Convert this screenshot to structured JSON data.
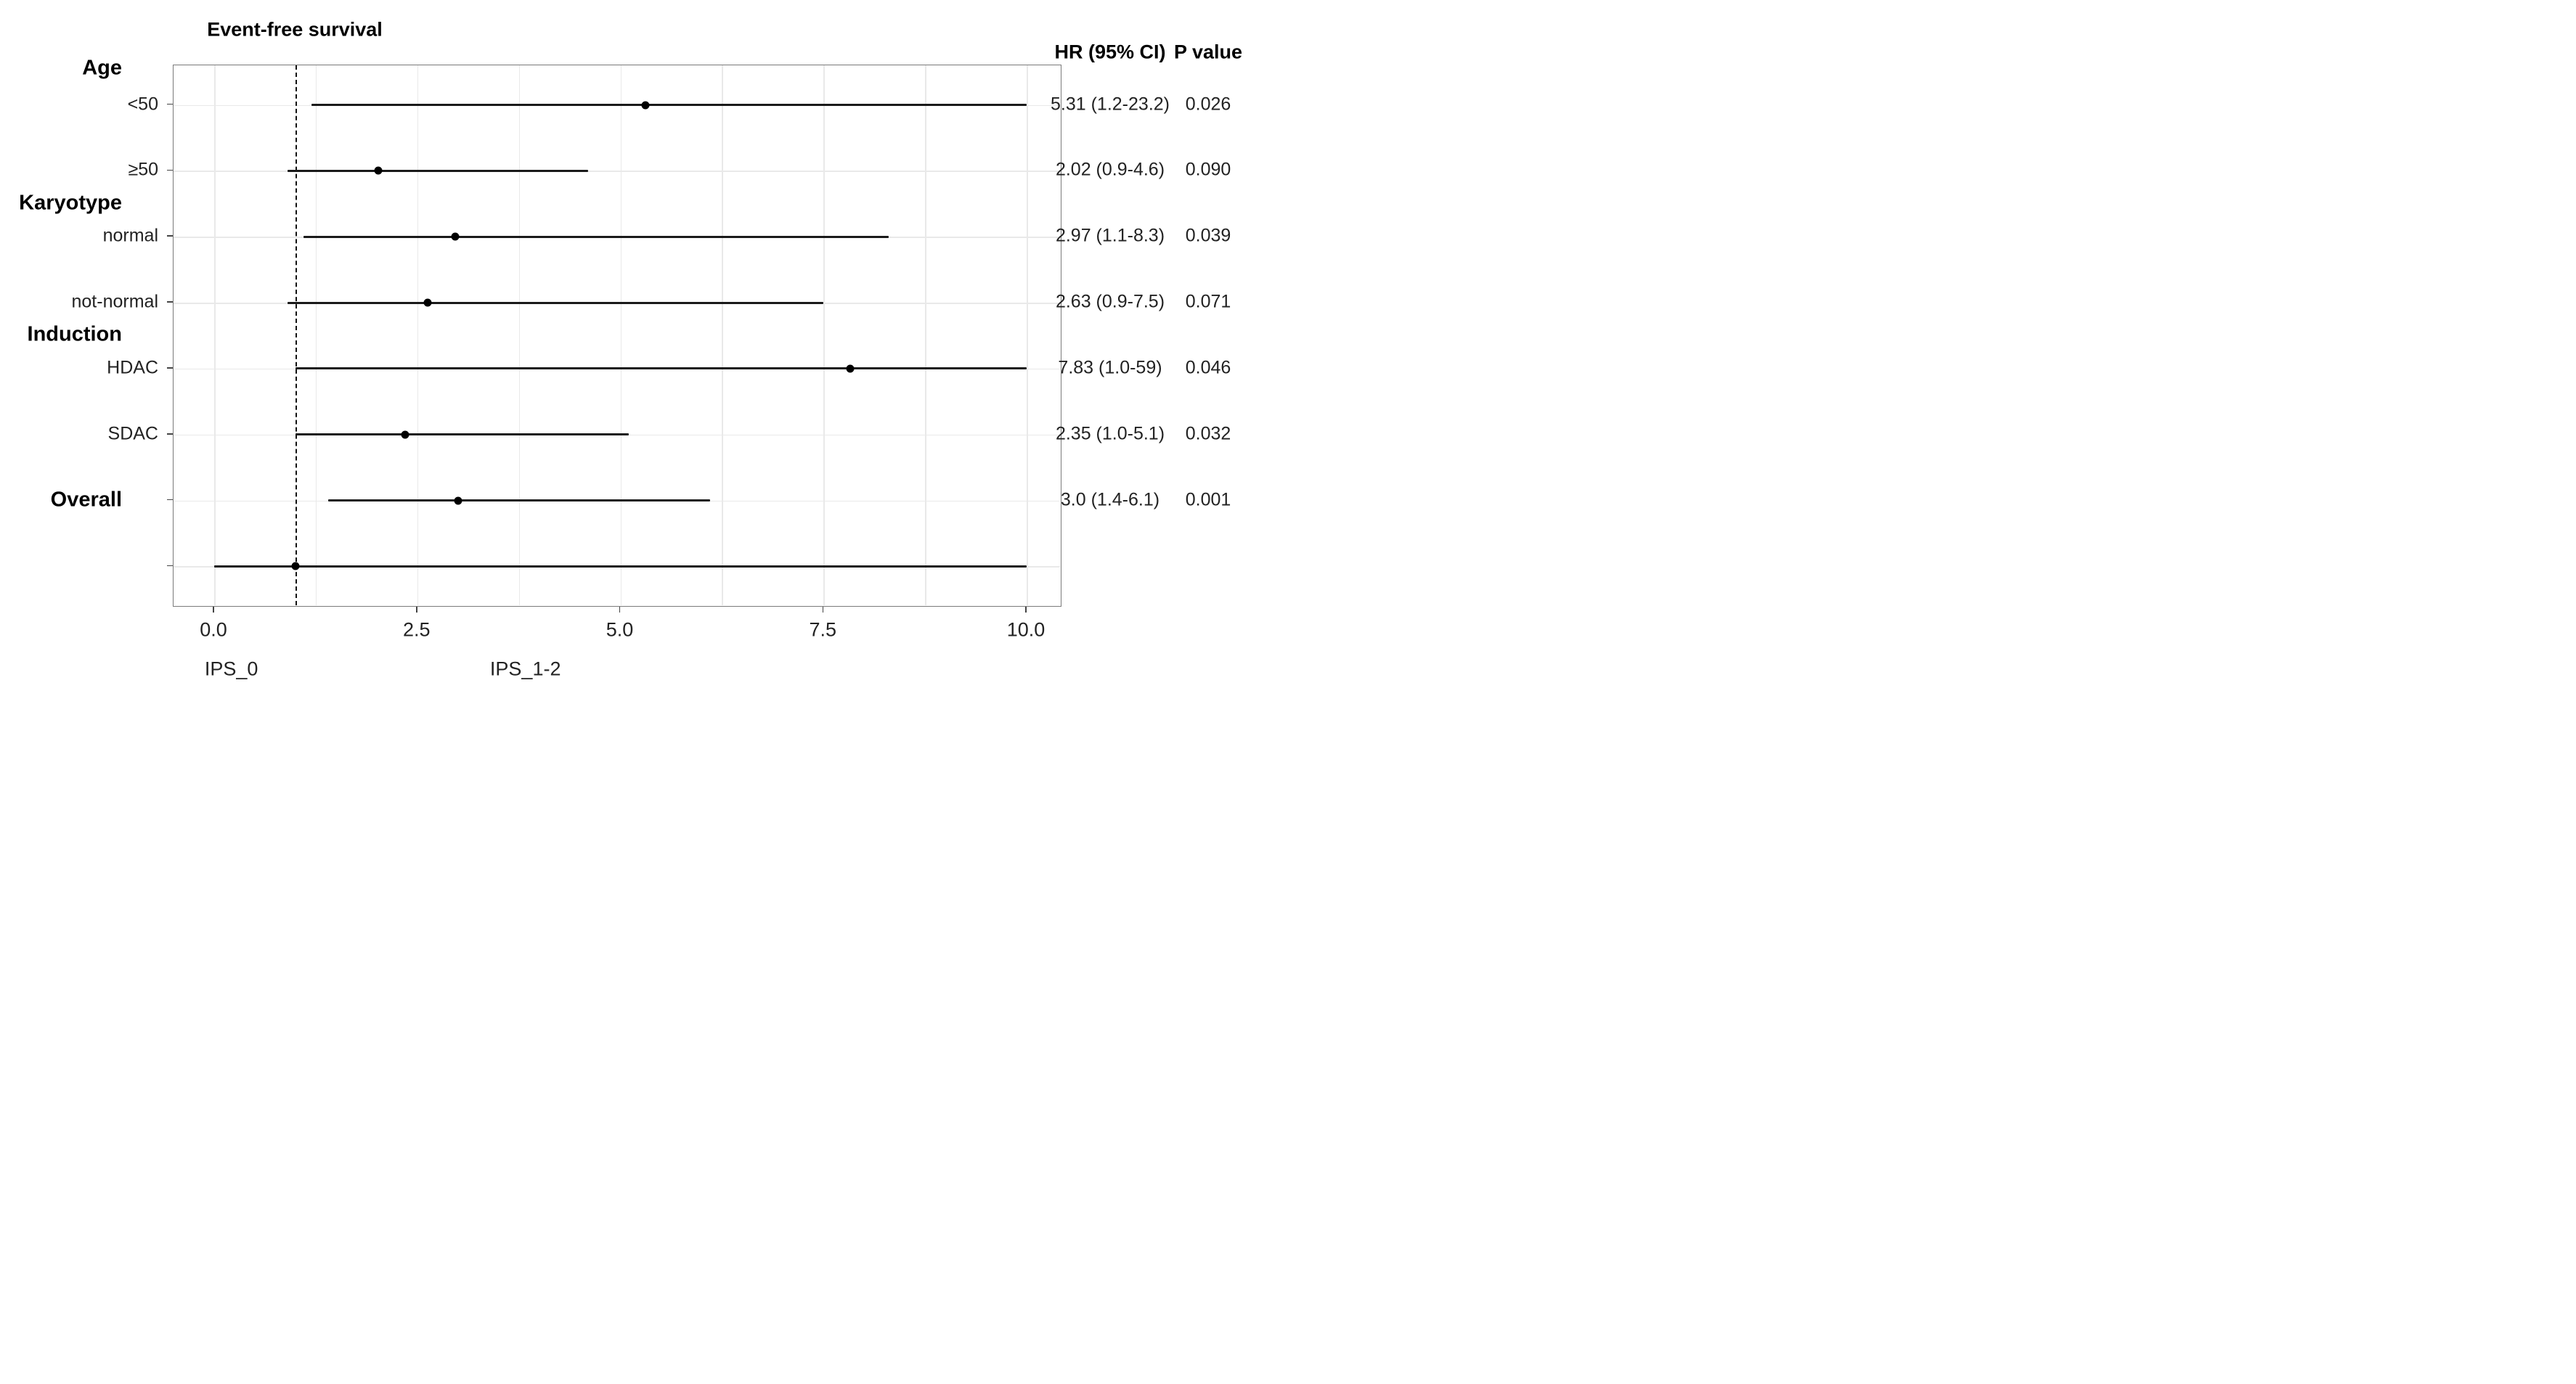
{
  "chart_data": {
    "type": "forest",
    "title": "Event-free survival",
    "col_headers": {
      "hr": "HR (95% CI)",
      "p": "P value"
    },
    "x_axis": {
      "range": [
        -0.5,
        10.45
      ],
      "grid_step": 1.25,
      "reference_line_x": 1.0,
      "ticks": [
        {
          "v": 0.0,
          "label": "0.0"
        },
        {
          "v": 2.5,
          "label": "2.5"
        },
        {
          "v": 5.0,
          "label": "5.0"
        },
        {
          "v": 7.5,
          "label": "7.5"
        },
        {
          "v": 10.0,
          "label": "10.0"
        }
      ],
      "annotations": [
        {
          "x": 0.22,
          "label": "IPS_0"
        },
        {
          "x": 3.84,
          "label": "IPS_1-2"
        }
      ]
    },
    "group_headers": [
      {
        "label": "Age",
        "slot": "above-row-0"
      },
      {
        "label": "Karyotype",
        "slot": "between-rows-1-2"
      },
      {
        "label": "Induction",
        "slot": "between-rows-3-4"
      }
    ],
    "rows": [
      {
        "label": "<50",
        "bold": false,
        "estimate": 5.31,
        "ci_low": 1.2,
        "ci_high": 23.2,
        "hr_text": "5.31 (1.2-23.2)",
        "p_text": "0.026"
      },
      {
        "label": "≥50",
        "bold": false,
        "estimate": 2.02,
        "ci_low": 0.9,
        "ci_high": 4.6,
        "hr_text": "2.02 (0.9-4.6)",
        "p_text": "0.090"
      },
      {
        "label": "normal",
        "bold": false,
        "estimate": 2.97,
        "ci_low": 1.1,
        "ci_high": 8.3,
        "hr_text": "2.97 (1.1-8.3)",
        "p_text": "0.039"
      },
      {
        "label": "not-normal",
        "bold": false,
        "estimate": 2.63,
        "ci_low": 0.9,
        "ci_high": 7.5,
        "hr_text": "2.63 (0.9-7.5)",
        "p_text": "0.071"
      },
      {
        "label": "HDAC",
        "bold": false,
        "estimate": 7.83,
        "ci_low": 1.0,
        "ci_high": 59,
        "hr_text": "7.83 (1.0-59)",
        "p_text": "0.046"
      },
      {
        "label": "SDAC",
        "bold": false,
        "estimate": 2.35,
        "ci_low": 1.0,
        "ci_high": 5.1,
        "hr_text": "2.35 (1.0-5.1)",
        "p_text": "0.032"
      },
      {
        "label": "Overall",
        "bold": true,
        "estimate": 3.0,
        "ci_low": 1.4,
        "ci_high": 6.1,
        "hr_text": "3.0 (1.4-6.1)",
        "p_text": "0.001"
      },
      {
        "label": "",
        "bold": false,
        "estimate": 1.0,
        "ci_low": 0.0,
        "ci_high": 10.0,
        "hr_text": "",
        "p_text": ""
      }
    ],
    "colors": {
      "ci_line": "#1a1a1a",
      "point": "#000000",
      "grid": "#e9e9e9",
      "panel_border": "#7a7a7a",
      "reference_line": "#111111"
    }
  }
}
